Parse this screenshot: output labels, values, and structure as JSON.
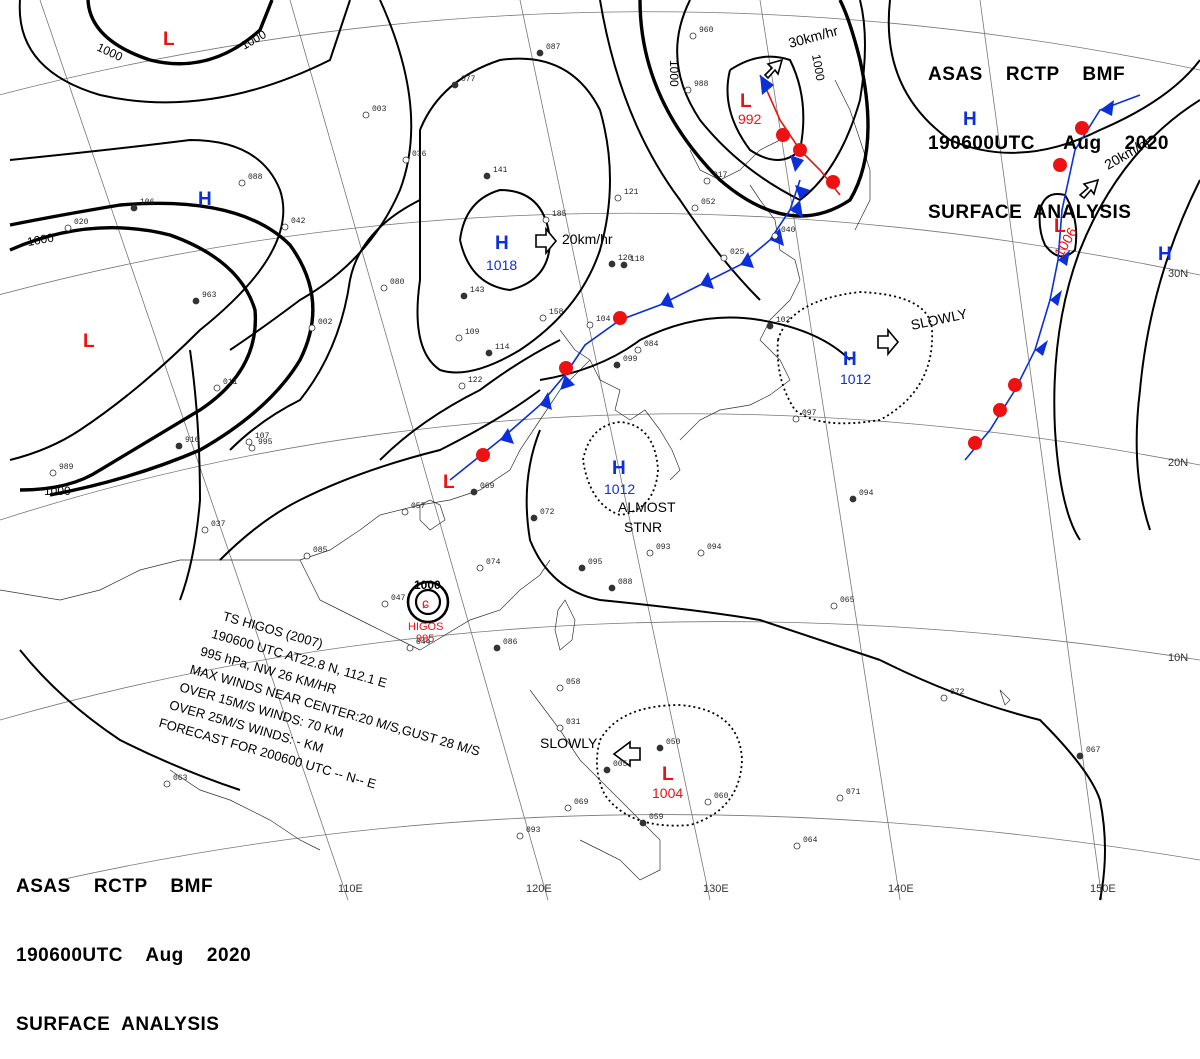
{
  "header_top": {
    "line1": "ASAS    RCTP    BMF",
    "line2": "190600UTC     Aug    2020",
    "line3": "SURFACE  ANALYSIS"
  },
  "header_bottom": {
    "line1": "ASAS    RCTP    BMF",
    "line2": "190600UTC    Aug    2020",
    "line3": "SURFACE  ANALYSIS"
  },
  "latitude_labels": [
    "30N",
    "20N",
    "10N"
  ],
  "longitude_labels": [
    "110E",
    "120E",
    "130E",
    "140E",
    "150E"
  ],
  "isobar_labels": [
    "1000",
    "1000",
    "1000",
    "1000",
    "1000",
    "1000"
  ],
  "pressure_systems": [
    {
      "type": "H",
      "value": "1018"
    },
    {
      "type": "H",
      "value": "1012"
    },
    {
      "type": "H",
      "value": "1012"
    },
    {
      "type": "H",
      "value": ""
    },
    {
      "type": "H",
      "value": ""
    },
    {
      "type": "H",
      "value": ""
    },
    {
      "type": "L",
      "value": "992"
    },
    {
      "type": "L",
      "value": "1006"
    },
    {
      "type": "L",
      "value": "1004"
    },
    {
      "type": "L",
      "value": ""
    },
    {
      "type": "L",
      "value": ""
    },
    {
      "type": "L",
      "value": ""
    }
  ],
  "motion_labels": [
    "20km/hr",
    "30km/hr",
    "20km/hr",
    "SLOWLY",
    "SLOWLY",
    "ALMOST",
    "STNR"
  ],
  "typhoon": {
    "name": "HIGOS",
    "pressure": "995",
    "center_isobar": "1000",
    "bulletin": [
      "TS  HIGOS  (2007)",
      "190600 UTC   AT22.8 N,  112.1 E",
      "995 hPa, NW  26 KM/HR",
      "MAX WINDS NEAR CENTER:20 M/S,GUST 28 M/S",
      "OVER 15M/S WINDS: 70 KM",
      "OVER 25M/S WINDS: - KM",
      "FORECAST FOR 200600 UTC -- N-- E"
    ]
  },
  "station_values": [
    "087",
    "960",
    "988",
    "077",
    "003",
    "036",
    "141",
    "088",
    "042",
    "106",
    "185",
    "121",
    "120",
    "017",
    "052",
    "118",
    "025",
    "040",
    "143",
    "158",
    "104",
    "102",
    "020",
    "080",
    "963",
    "002",
    "109",
    "114",
    "011",
    "084",
    "099",
    "122",
    "107",
    "916",
    "995",
    "989",
    "069",
    "057",
    "037",
    "072",
    "085",
    "074",
    "095",
    "093",
    "094",
    "088",
    "047",
    "044",
    "086",
    "058",
    "031",
    "050",
    "060",
    "069",
    "059",
    "064",
    "065",
    "067",
    "071",
    "072",
    "094",
    "097",
    "063",
    "005",
    "093"
  ],
  "colors": {
    "high": "#0b2fd8",
    "low": "#e11111",
    "cold_front": "#0b2fd8",
    "warm_front": "#e11111",
    "isobar": "#000000"
  }
}
